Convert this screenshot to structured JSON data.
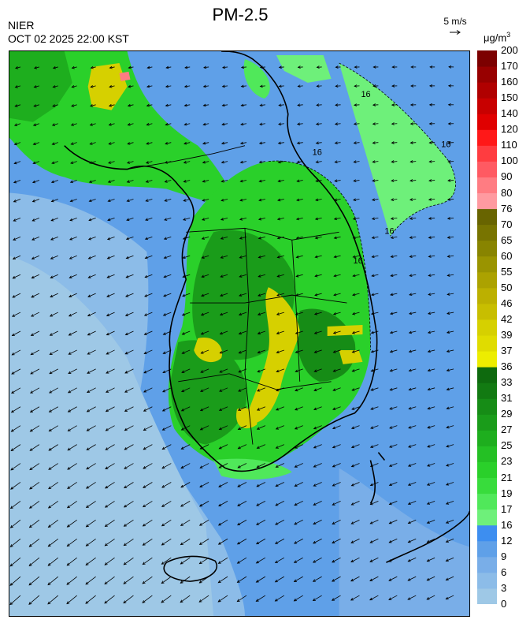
{
  "header": {
    "title": "PM-2.5",
    "org": "NIER",
    "timestamp": "OCT 02 2025 22:00 KST",
    "wind_ref": "5 m/s",
    "unit_base": "μg/m",
    "unit_exp": "3"
  },
  "legend": {
    "levels": [
      "0",
      "3",
      "6",
      "9",
      "12",
      "16",
      "17",
      "19",
      "21",
      "23",
      "25",
      "27",
      "29",
      "31",
      "33",
      "36",
      "37",
      "39",
      "42",
      "46",
      "50",
      "55",
      "60",
      "65",
      "70",
      "76",
      "80",
      "90",
      "100",
      "110",
      "120",
      "140",
      "150",
      "160",
      "170",
      "200"
    ],
    "colors": [
      "#9ec8e6",
      "#8cbce8",
      "#79aee8",
      "#5fa0e8",
      "#3d8ef0",
      "#6ef07a",
      "#50e85a",
      "#38dc3c",
      "#2ad02a",
      "#24c024",
      "#1eae1e",
      "#1a9c1a",
      "#168c16",
      "#127a12",
      "#0e6a0e",
      "#eded00",
      "#e0dc00",
      "#d6d000",
      "#c8be00",
      "#bcb000",
      "#aca200",
      "#9a9400",
      "#888400",
      "#787400",
      "#686400",
      "#ff9aa0",
      "#ff7c82",
      "#ff5a62",
      "#ff3c40",
      "#ff1818",
      "#e00000",
      "#c80000",
      "#b00000",
      "#980000",
      "#7c0000"
    ]
  },
  "map_layers": {
    "background": "#5fa0e8",
    "contour_label": "16"
  }
}
